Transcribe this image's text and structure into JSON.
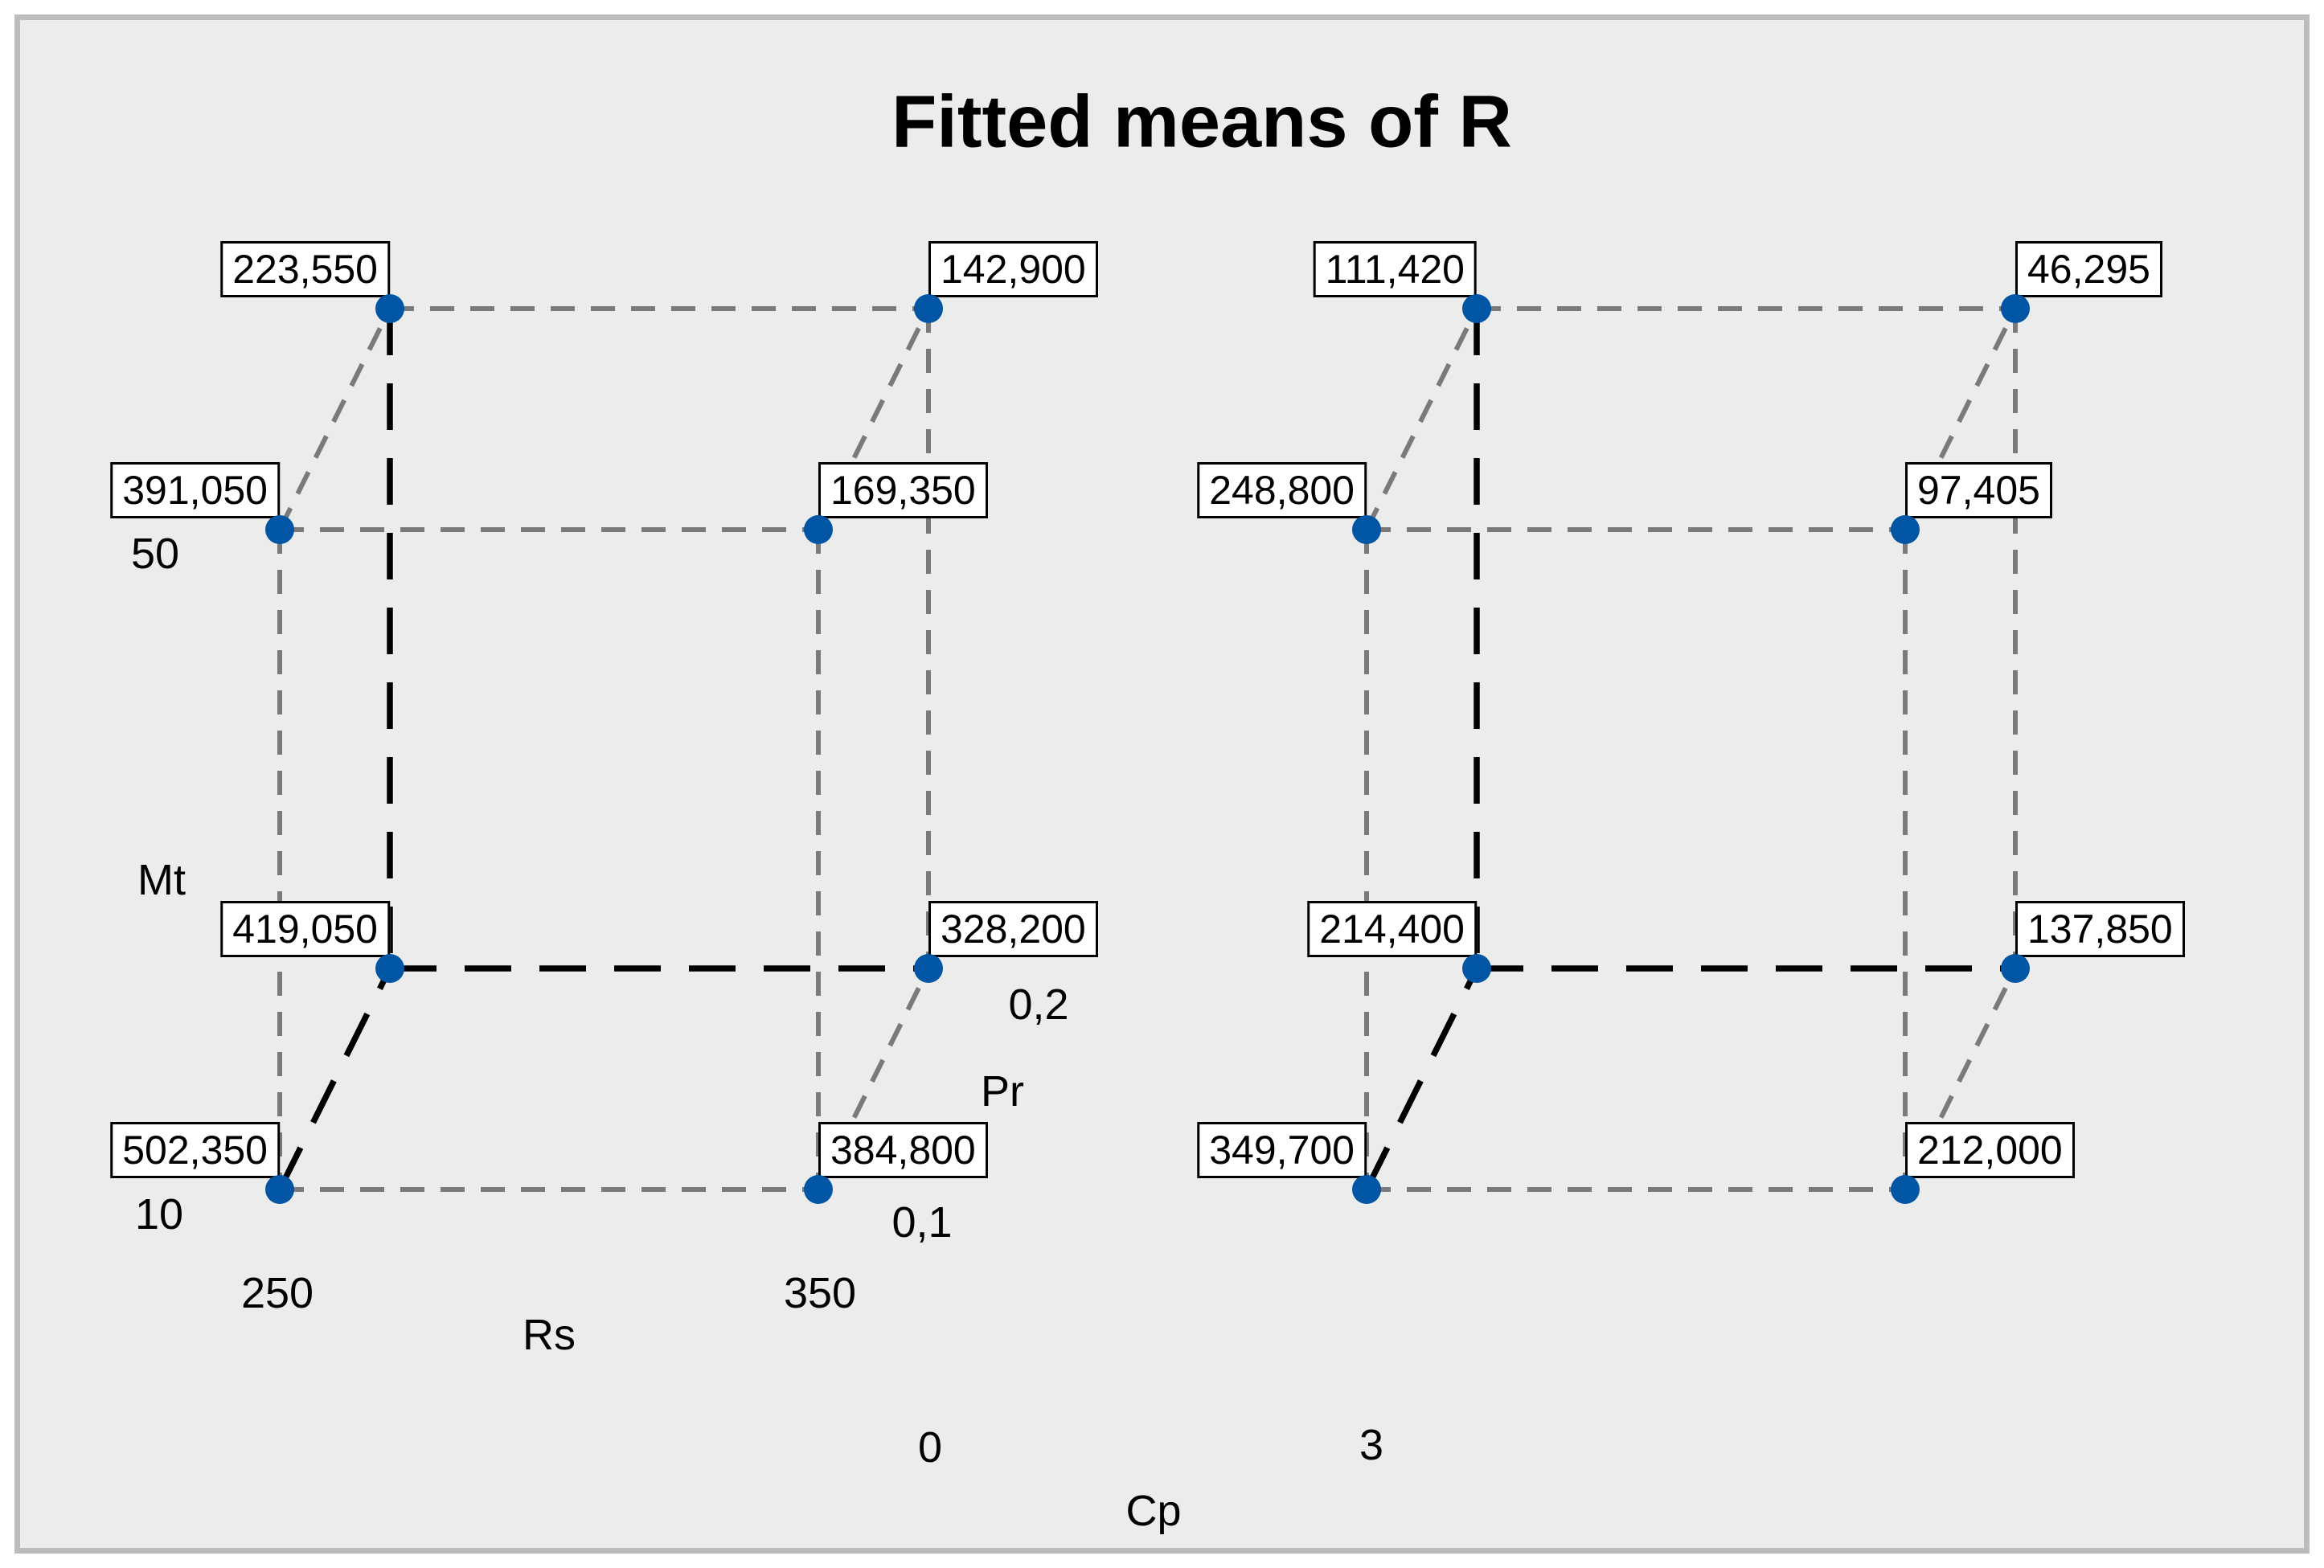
{
  "title": "Fitted means of R",
  "colors": {
    "background": "#ECECEC",
    "frame_border": "#BCBCBC",
    "outer_margin": "#FFFFFF",
    "point": "#0055A5",
    "edge_visible_gray": "#7A7A7A",
    "edge_hidden_black": "#000000",
    "label_box_bg": "#FFFFFF",
    "label_box_border": "#000000",
    "text": "#000000"
  },
  "axes": {
    "rs": {
      "name": "Rs",
      "ticks": [
        "250",
        "350"
      ]
    },
    "mt": {
      "name": "Mt",
      "ticks": [
        "10",
        "50"
      ]
    },
    "pr": {
      "name": "Pr",
      "ticks": [
        "0,1",
        "0,2"
      ]
    },
    "cp": {
      "name": "Cp",
      "ticks": [
        "0",
        "3"
      ]
    }
  },
  "chart_data": {
    "type": "cube",
    "title": "Fitted means of R",
    "response": "R",
    "factors": {
      "Rs": [
        "250",
        "350"
      ],
      "Mt": [
        "10",
        "50"
      ],
      "Pr": [
        "0,1",
        "0,2"
      ],
      "Cp": [
        "0",
        "3"
      ]
    },
    "cubes": [
      {
        "cp": "0",
        "points": [
          {
            "corner": "tbl",
            "rs": "250",
            "mt": "50",
            "pr": "0,2",
            "value": "223,550",
            "label_side": "left"
          },
          {
            "corner": "tbr",
            "rs": "350",
            "mt": "50",
            "pr": "0,2",
            "value": "142,900",
            "label_side": "right"
          },
          {
            "corner": "tfl",
            "rs": "250",
            "mt": "50",
            "pr": "0,1",
            "value": "391,050",
            "label_side": "left"
          },
          {
            "corner": "tfr",
            "rs": "350",
            "mt": "50",
            "pr": "0,1",
            "value": "169,350",
            "label_side": "right"
          },
          {
            "corner": "bbl",
            "rs": "250",
            "mt": "10",
            "pr": "0,2",
            "value": "419,050",
            "label_side": "left"
          },
          {
            "corner": "bbr",
            "rs": "350",
            "mt": "10",
            "pr": "0,2",
            "value": "328,200",
            "label_side": "right"
          },
          {
            "corner": "bfl",
            "rs": "250",
            "mt": "10",
            "pr": "0,1",
            "value": "502,350",
            "label_side": "left"
          },
          {
            "corner": "bfr",
            "rs": "350",
            "mt": "10",
            "pr": "0,1",
            "value": "384,800",
            "label_side": "right"
          }
        ]
      },
      {
        "cp": "3",
        "points": [
          {
            "corner": "tbl",
            "rs": "250",
            "mt": "50",
            "pr": "0,2",
            "value": "111,420",
            "label_side": "left"
          },
          {
            "corner": "tbr",
            "rs": "350",
            "mt": "50",
            "pr": "0,2",
            "value": "46,295",
            "label_side": "right"
          },
          {
            "corner": "tfl",
            "rs": "250",
            "mt": "50",
            "pr": "0,1",
            "value": "248,800",
            "label_side": "left"
          },
          {
            "corner": "tfr",
            "rs": "350",
            "mt": "50",
            "pr": "0,1",
            "value": "97,405",
            "label_side": "right"
          },
          {
            "corner": "bbl",
            "rs": "250",
            "mt": "10",
            "pr": "0,2",
            "value": "214,400",
            "label_side": "left"
          },
          {
            "corner": "bbr",
            "rs": "350",
            "mt": "10",
            "pr": "0,2",
            "value": "137,850",
            "label_side": "right"
          },
          {
            "corner": "bfl",
            "rs": "250",
            "mt": "10",
            "pr": "0,1",
            "value": "349,700",
            "label_side": "left"
          },
          {
            "corner": "bfr",
            "rs": "350",
            "mt": "10",
            "pr": "0,1",
            "value": "212,000",
            "label_side": "right"
          }
        ]
      }
    ]
  }
}
